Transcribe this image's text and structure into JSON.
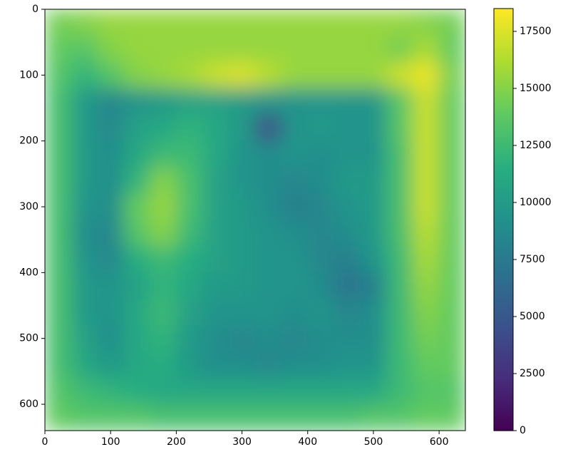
{
  "chart_data": {
    "type": "heatmap",
    "colormap": "viridis",
    "xlim": [
      0,
      640
    ],
    "ylim": [
      640,
      0
    ],
    "xticks": [
      0,
      100,
      200,
      300,
      400,
      500,
      600
    ],
    "yticks": [
      0,
      100,
      200,
      300,
      400,
      500,
      600
    ],
    "clim": [
      0,
      18500
    ],
    "colorbar_ticks": [
      0,
      2500,
      5000,
      7500,
      10000,
      12500,
      15000,
      17500
    ],
    "z": [
      [
        14500,
        15000,
        15500,
        15500,
        15500,
        15500,
        15500,
        15500,
        15500,
        15500,
        15500,
        15500,
        15500,
        15500,
        15000,
        14500
      ],
      [
        14000,
        13500,
        15000,
        15500,
        15500,
        15500,
        15500,
        15500,
        15500,
        15500,
        15500,
        15500,
        15500,
        14500,
        16000,
        14000
      ],
      [
        13500,
        12000,
        13500,
        15000,
        15500,
        16000,
        17000,
        17500,
        16500,
        15500,
        15500,
        15500,
        15500,
        17000,
        18000,
        14500
      ],
      [
        13000,
        10000,
        8500,
        9500,
        10000,
        10500,
        10500,
        10000,
        9500,
        9500,
        9500,
        9500,
        9500,
        13500,
        17000,
        14000
      ],
      [
        13000,
        10000,
        8500,
        10500,
        11000,
        12000,
        11000,
        10000,
        4500,
        9500,
        10000,
        9500,
        9500,
        13500,
        17000,
        14000
      ],
      [
        13000,
        10000,
        9000,
        11000,
        12500,
        12500,
        11000,
        9500,
        9000,
        9500,
        9000,
        9500,
        9500,
        13000,
        17000,
        14000
      ],
      [
        13000,
        10000,
        9000,
        12000,
        15000,
        13000,
        10500,
        9500,
        9000,
        8500,
        9000,
        10000,
        10000,
        13000,
        17000,
        14000
      ],
      [
        13000,
        9500,
        9000,
        14000,
        15500,
        13000,
        10500,
        10000,
        9000,
        8000,
        8500,
        9500,
        10000,
        13000,
        17000,
        14000
      ],
      [
        13000,
        9000,
        8500,
        13500,
        15000,
        12500,
        10500,
        10000,
        9500,
        9000,
        8500,
        9000,
        10000,
        13000,
        16500,
        14000
      ],
      [
        13000,
        9500,
        8500,
        11500,
        12500,
        11500,
        10500,
        10000,
        9500,
        9500,
        8500,
        8000,
        9500,
        12500,
        16000,
        14000
      ],
      [
        13000,
        10000,
        9500,
        10500,
        12000,
        11000,
        10000,
        10000,
        9500,
        9500,
        9000,
        7000,
        8000,
        12500,
        15500,
        14000
      ],
      [
        13000,
        10000,
        9500,
        11000,
        12500,
        10500,
        9500,
        9500,
        9500,
        9000,
        9500,
        8500,
        9000,
        12500,
        15000,
        14000
      ],
      [
        13000,
        10500,
        9000,
        11000,
        12000,
        10000,
        9000,
        8500,
        9000,
        8500,
        9000,
        9000,
        9000,
        12500,
        14500,
        14000
      ],
      [
        13000,
        11000,
        10000,
        11000,
        11500,
        10000,
        9000,
        9000,
        8500,
        9000,
        9000,
        9500,
        9500,
        12500,
        14000,
        14000
      ],
      [
        13500,
        12500,
        12000,
        11500,
        11000,
        11000,
        11000,
        11000,
        11000,
        11000,
        11000,
        11000,
        11000,
        12500,
        13500,
        13500
      ],
      [
        14000,
        13500,
        13500,
        13500,
        13000,
        13000,
        13000,
        13000,
        13000,
        13000,
        13000,
        13000,
        13500,
        13500,
        14000,
        14000
      ]
    ]
  }
}
